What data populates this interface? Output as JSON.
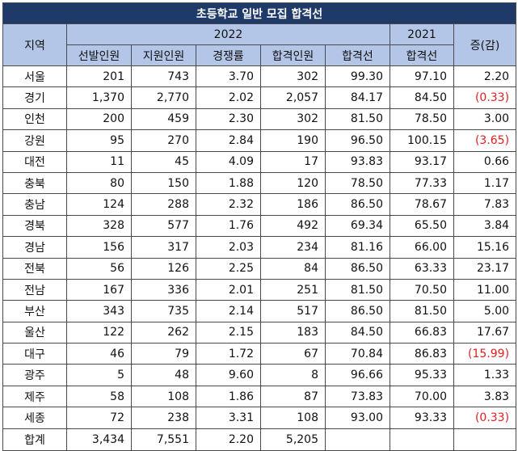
{
  "title": "초등학교 일반 모집 합격선",
  "headers": {
    "region": "지역",
    "year2022": "2022",
    "year2021": "2021",
    "change": "증(감)",
    "sub": [
      "선발인원",
      "지원인원",
      "경쟁률",
      "합격인원",
      "합격선",
      "합격선"
    ]
  },
  "rows": [
    {
      "region": "서울",
      "selected": "201",
      "applied": "743",
      "ratio": "3.70",
      "passed": "302",
      "cut2022": "99.30",
      "cut2021": "97.10",
      "change": "2.20",
      "negative": false
    },
    {
      "region": "경기",
      "selected": "1,370",
      "applied": "2,770",
      "ratio": "2.02",
      "passed": "2,057",
      "cut2022": "84.17",
      "cut2021": "84.50",
      "change": "(0.33)",
      "negative": true
    },
    {
      "region": "인천",
      "selected": "200",
      "applied": "459",
      "ratio": "2.30",
      "passed": "302",
      "cut2022": "81.50",
      "cut2021": "78.50",
      "change": "3.00",
      "negative": false
    },
    {
      "region": "강원",
      "selected": "95",
      "applied": "270",
      "ratio": "2.84",
      "passed": "190",
      "cut2022": "96.50",
      "cut2021": "100.15",
      "change": "(3.65)",
      "negative": true
    },
    {
      "region": "대전",
      "selected": "11",
      "applied": "45",
      "ratio": "4.09",
      "passed": "17",
      "cut2022": "93.83",
      "cut2021": "93.17",
      "change": "0.66",
      "negative": false
    },
    {
      "region": "충북",
      "selected": "80",
      "applied": "150",
      "ratio": "1.88",
      "passed": "120",
      "cut2022": "78.50",
      "cut2021": "77.33",
      "change": "1.17",
      "negative": false
    },
    {
      "region": "충남",
      "selected": "124",
      "applied": "288",
      "ratio": "2.32",
      "passed": "186",
      "cut2022": "86.50",
      "cut2021": "78.67",
      "change": "7.83",
      "negative": false
    },
    {
      "region": "경북",
      "selected": "328",
      "applied": "577",
      "ratio": "1.76",
      "passed": "492",
      "cut2022": "69.34",
      "cut2021": "65.50",
      "change": "3.84",
      "negative": false
    },
    {
      "region": "경남",
      "selected": "156",
      "applied": "317",
      "ratio": "2.03",
      "passed": "234",
      "cut2022": "81.16",
      "cut2021": "66.00",
      "change": "15.16",
      "negative": false
    },
    {
      "region": "전북",
      "selected": "56",
      "applied": "126",
      "ratio": "2.25",
      "passed": "84",
      "cut2022": "86.50",
      "cut2021": "63.33",
      "change": "23.17",
      "negative": false
    },
    {
      "region": "전남",
      "selected": "167",
      "applied": "336",
      "ratio": "2.01",
      "passed": "251",
      "cut2022": "81.50",
      "cut2021": "70.50",
      "change": "11.00",
      "negative": false
    },
    {
      "region": "부산",
      "selected": "343",
      "applied": "735",
      "ratio": "2.14",
      "passed": "517",
      "cut2022": "86.50",
      "cut2021": "81.50",
      "change": "5.00",
      "negative": false
    },
    {
      "region": "울산",
      "selected": "122",
      "applied": "262",
      "ratio": "2.15",
      "passed": "183",
      "cut2022": "84.50",
      "cut2021": "66.83",
      "change": "17.67",
      "negative": false
    },
    {
      "region": "대구",
      "selected": "46",
      "applied": "79",
      "ratio": "1.72",
      "passed": "67",
      "cut2022": "70.84",
      "cut2021": "86.83",
      "change": "(15.99)",
      "negative": true
    },
    {
      "region": "광주",
      "selected": "5",
      "applied": "48",
      "ratio": "9.60",
      "passed": "8",
      "cut2022": "96.66",
      "cut2021": "95.33",
      "change": "1.33",
      "negative": false
    },
    {
      "region": "제주",
      "selected": "58",
      "applied": "108",
      "ratio": "1.86",
      "passed": "87",
      "cut2022": "73.83",
      "cut2021": "70.00",
      "change": "3.83",
      "negative": false
    },
    {
      "region": "세종",
      "selected": "72",
      "applied": "238",
      "ratio": "3.31",
      "passed": "108",
      "cut2022": "93.00",
      "cut2021": "93.33",
      "change": "(0.33)",
      "negative": true
    }
  ],
  "total": {
    "region": "합계",
    "selected": "3,434",
    "applied": "7,551",
    "ratio": "2.20",
    "passed": "5,205",
    "cut2022": "",
    "cut2021": "",
    "change": ""
  },
  "colors": {
    "title_bg": "#1f3a68",
    "header_bg": "#b4c6e7",
    "negative": "#e02020"
  }
}
